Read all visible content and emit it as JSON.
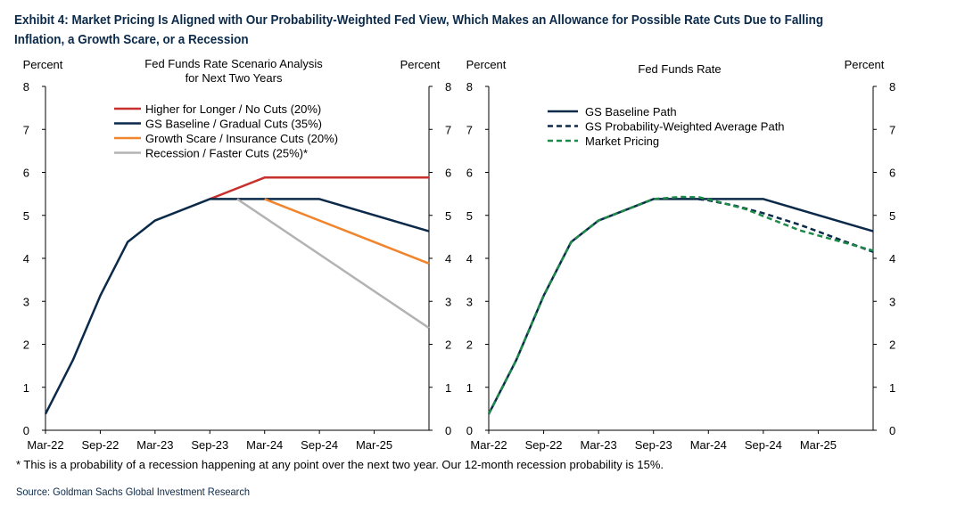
{
  "exhibit": {
    "title": "Exhibit 4: Market Pricing Is Aligned with Our Probability-Weighted Fed View, Which Makes an Allowance for Possible Rate Cuts Due to Falling Inflation, a Growth Scare, or a Recession",
    "footnote": "* This is a probability of a recession happening at any point over the next two year.  Our 12-month recession probability is 15%.",
    "source": "Source: Goldman Sachs Global Investment Research"
  },
  "chart_data": [
    {
      "type": "line",
      "title": "Fed Funds Rate Scenario Analysis\nfor Next Two Years",
      "ylabel_left": "Percent",
      "ylabel_right": "Percent",
      "ylim": [
        0,
        8
      ],
      "yticks": [
        0,
        1,
        2,
        3,
        4,
        5,
        6,
        7,
        8
      ],
      "xlim": [
        "2022-03",
        "2025-09"
      ],
      "xtick_labels": [
        "Mar-22",
        "Sep-22",
        "Mar-23",
        "Sep-23",
        "Mar-24",
        "Sep-24",
        "Mar-25"
      ],
      "xtick_dates": [
        "2022-03",
        "2022-09",
        "2023-03",
        "2023-09",
        "2024-03",
        "2024-09",
        "2025-03"
      ],
      "legend_position": "top-center",
      "grid": false,
      "series": [
        {
          "name": "Higher for Longer / No Cuts (20%)",
          "color": "#c8302d",
          "dash": "solid",
          "x": [
            "2023-09",
            "2024-03",
            "2025-09"
          ],
          "y": [
            5.38,
            5.88,
            5.88
          ]
        },
        {
          "name": "GS Baseline / Gradual Cuts (35%)",
          "color": "#0b2a4a",
          "dash": "solid",
          "x": [
            "2022-03",
            "2022-06",
            "2022-09",
            "2022-12",
            "2023-03",
            "2023-09",
            "2024-09",
            "2025-09"
          ],
          "y": [
            0.38,
            1.63,
            3.13,
            4.38,
            4.88,
            5.38,
            5.38,
            4.63
          ]
        },
        {
          "name": "Growth Scare / Insurance Cuts (20%)",
          "color": "#f0852d",
          "dash": "solid",
          "x": [
            "2024-03",
            "2025-09"
          ],
          "y": [
            5.38,
            3.88
          ]
        },
        {
          "name": "Recession / Faster Cuts (25%)*",
          "color": "#b3b3b3",
          "dash": "solid",
          "x": [
            "2023-12",
            "2025-09"
          ],
          "y": [
            5.38,
            2.38
          ]
        }
      ]
    },
    {
      "type": "line",
      "title": "Fed Funds Rate",
      "ylabel_left": "Percent",
      "ylabel_right": "Percent",
      "ylim": [
        0,
        8
      ],
      "yticks": [
        0,
        1,
        2,
        3,
        4,
        5,
        6,
        7,
        8
      ],
      "xlim": [
        "2022-03",
        "2025-09"
      ],
      "xtick_labels": [
        "Mar-22",
        "Sep-22",
        "Mar-23",
        "Sep-23",
        "Mar-24",
        "Sep-24",
        "Mar-25"
      ],
      "xtick_dates": [
        "2022-03",
        "2022-09",
        "2023-03",
        "2023-09",
        "2024-03",
        "2024-09",
        "2025-03"
      ],
      "legend_position": "top-left",
      "grid": false,
      "series": [
        {
          "name": "GS Baseline Path",
          "color": "#0b2a4a",
          "dash": "solid",
          "x": [
            "2022-03",
            "2022-06",
            "2022-09",
            "2022-12",
            "2023-03",
            "2023-09",
            "2024-09",
            "2025-09"
          ],
          "y": [
            0.38,
            1.63,
            3.13,
            4.38,
            4.88,
            5.38,
            5.38,
            4.63
          ]
        },
        {
          "name": "GS Probability-Weighted Average Path",
          "color": "#0b2a4a",
          "dash": "dashed",
          "x": [
            "2022-03",
            "2022-06",
            "2022-09",
            "2022-12",
            "2023-03",
            "2023-09",
            "2024-01",
            "2024-03",
            "2024-06",
            "2024-09",
            "2025-01",
            "2025-09"
          ],
          "y": [
            0.38,
            1.63,
            3.13,
            4.38,
            4.88,
            5.38,
            5.4,
            5.35,
            5.22,
            5.05,
            4.78,
            4.15
          ]
        },
        {
          "name": "Market Pricing",
          "color": "#1e8a4a",
          "dash": "dashed",
          "x": [
            "2022-03",
            "2022-06",
            "2022-09",
            "2022-12",
            "2023-03",
            "2023-09",
            "2023-12",
            "2024-02",
            "2024-04",
            "2024-07",
            "2024-10",
            "2025-01",
            "2025-09"
          ],
          "y": [
            0.38,
            1.63,
            3.13,
            4.38,
            4.88,
            5.38,
            5.43,
            5.42,
            5.32,
            5.15,
            4.9,
            4.65,
            4.18
          ]
        }
      ]
    }
  ]
}
